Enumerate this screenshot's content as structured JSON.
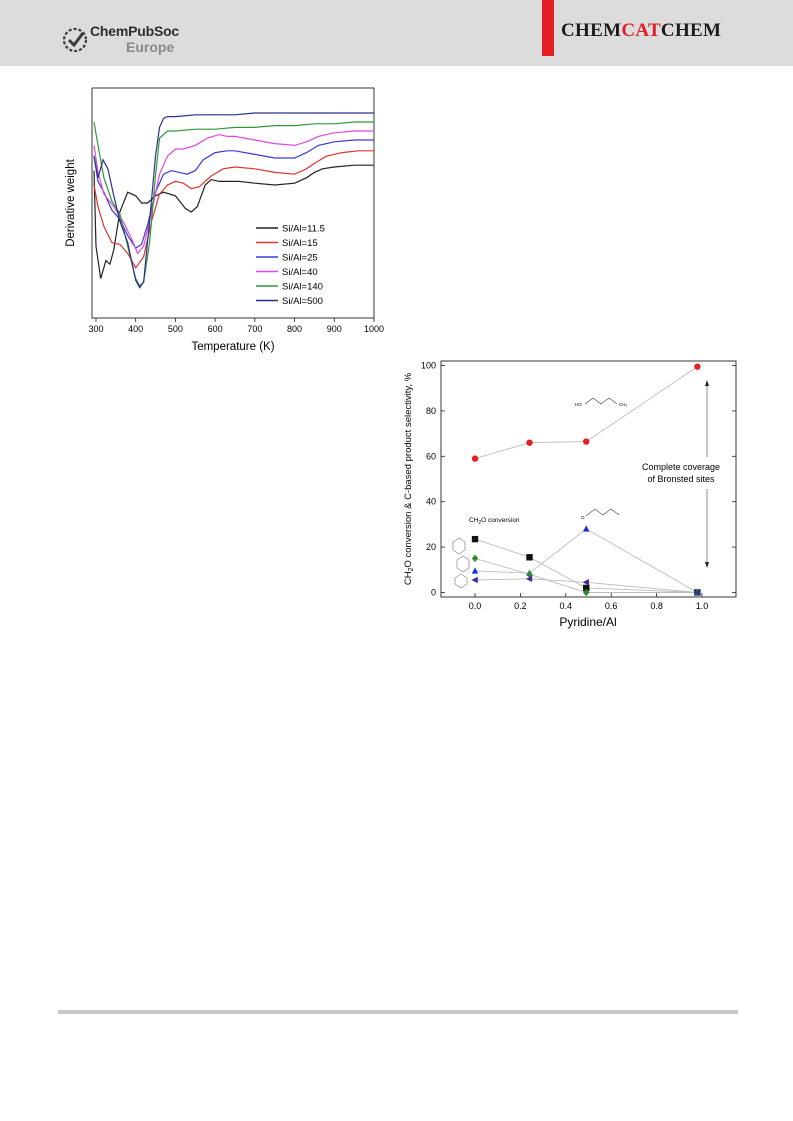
{
  "header": {
    "publisher_line1": "ChemPubSoc",
    "publisher_line2": "Europe",
    "journal_part1": "CHEM",
    "journal_part2": "CAT",
    "journal_part3": "CHEM",
    "accent_color": "#e31e24"
  },
  "chart_data": [
    {
      "type": "line",
      "xlabel": "Temperature (K)",
      "ylabel": "Derivative weight",
      "xlim": [
        290,
        1000
      ],
      "x_ticks": [
        "300",
        "400",
        "500",
        "600",
        "700",
        "800",
        "900",
        "1000"
      ],
      "y_ticks_shown": false,
      "grid": false,
      "legend_position": "lower-right",
      "series": [
        {
          "name": "Si/Al=11.5",
          "color": "#222222",
          "x": [
            295,
            300,
            312,
            325,
            335,
            345,
            360,
            380,
            400,
            415,
            430,
            450,
            470,
            500,
            525,
            540,
            555,
            575,
            590,
            610,
            630,
            660,
            700,
            750,
            800,
            830,
            850,
            870,
            900,
            950,
            1000
          ],
          "y": [
            0.32,
            0.74,
            0.92,
            0.82,
            0.84,
            0.76,
            0.55,
            0.44,
            0.46,
            0.5,
            0.5,
            0.46,
            0.44,
            0.46,
            0.53,
            0.55,
            0.52,
            0.4,
            0.37,
            0.38,
            0.38,
            0.38,
            0.39,
            0.4,
            0.39,
            0.36,
            0.33,
            0.31,
            0.3,
            0.29,
            0.29
          ]
        },
        {
          "name": "Si/Al=15",
          "color": "#e0342e",
          "x": [
            295,
            305,
            320,
            340,
            360,
            380,
            400,
            420,
            440,
            460,
            480,
            500,
            520,
            540,
            560,
            590,
            620,
            650,
            700,
            750,
            800,
            830,
            850,
            880,
            920,
            960,
            1000
          ],
          "y": [
            0.4,
            0.52,
            0.63,
            0.72,
            0.73,
            0.78,
            0.86,
            0.8,
            0.6,
            0.45,
            0.4,
            0.38,
            0.39,
            0.42,
            0.41,
            0.35,
            0.31,
            0.3,
            0.31,
            0.33,
            0.34,
            0.31,
            0.28,
            0.24,
            0.22,
            0.21,
            0.21
          ]
        },
        {
          "name": "Si/Al=25",
          "color": "#3a3ad8",
          "x": [
            295,
            305,
            320,
            340,
            360,
            380,
            400,
            415,
            430,
            450,
            470,
            490,
            510,
            530,
            550,
            570,
            600,
            630,
            650,
            700,
            750,
            800,
            830,
            860,
            900,
            950,
            1000
          ],
          "y": [
            0.24,
            0.38,
            0.44,
            0.54,
            0.59,
            0.68,
            0.75,
            0.73,
            0.62,
            0.44,
            0.34,
            0.32,
            0.33,
            0.34,
            0.32,
            0.26,
            0.22,
            0.21,
            0.21,
            0.23,
            0.25,
            0.25,
            0.22,
            0.18,
            0.16,
            0.15,
            0.15
          ]
        },
        {
          "name": "Si/Al=40",
          "color": "#e048e0",
          "x": [
            295,
            305,
            320,
            345,
            370,
            390,
            405,
            420,
            440,
            460,
            480,
            500,
            520,
            550,
            580,
            610,
            630,
            650,
            700,
            750,
            800,
            830,
            860,
            900,
            950,
            1000
          ],
          "y": [
            0.18,
            0.33,
            0.45,
            0.52,
            0.61,
            0.7,
            0.78,
            0.74,
            0.55,
            0.34,
            0.24,
            0.2,
            0.2,
            0.18,
            0.14,
            0.12,
            0.13,
            0.13,
            0.15,
            0.17,
            0.18,
            0.16,
            0.13,
            0.11,
            0.1,
            0.1
          ]
        },
        {
          "name": "Si/Al=140",
          "color": "#2e9a3a",
          "x": [
            295,
            305,
            320,
            340,
            360,
            380,
            400,
            410,
            420,
            435,
            450,
            460,
            480,
            500,
            550,
            600,
            650,
            700,
            750,
            800,
            850,
            900,
            950,
            1000
          ],
          "y": [
            0.05,
            0.18,
            0.36,
            0.49,
            0.56,
            0.74,
            0.92,
            0.96,
            0.94,
            0.72,
            0.35,
            0.14,
            0.1,
            0.1,
            0.09,
            0.09,
            0.08,
            0.08,
            0.07,
            0.07,
            0.06,
            0.06,
            0.05,
            0.05
          ]
        },
        {
          "name": "Si/Al=500",
          "color": "#2e2e8a",
          "x": [
            295,
            305,
            318,
            330,
            345,
            360,
            380,
            400,
            410,
            420,
            435,
            450,
            460,
            470,
            480,
            500,
            550,
            600,
            650,
            700,
            800,
            900,
            1000
          ],
          "y": [
            0.24,
            0.36,
            0.26,
            0.31,
            0.46,
            0.6,
            0.72,
            0.93,
            0.97,
            0.94,
            0.6,
            0.24,
            0.08,
            0.03,
            0.02,
            0.02,
            0.01,
            0.01,
            0.01,
            0.0,
            0.0,
            0.0,
            0.0
          ]
        }
      ]
    },
    {
      "type": "scatter",
      "xlabel": "Pyridine/Al",
      "ylabel_main": "CH",
      "ylabel_sub": "2",
      "ylabel_rest": "O conversion & C-based product selectivity, %",
      "xlim": [
        -0.15,
        1.15
      ],
      "ylim": [
        -2,
        102
      ],
      "x_ticks": [
        "0.0",
        "0.2",
        "0.4",
        "0.6",
        "0.8",
        "1.0"
      ],
      "y_ticks": [
        "0",
        "20",
        "40",
        "60",
        "80",
        "100"
      ],
      "annotation_main": "CH",
      "annotation_sub": "2",
      "annotation_rest": "O conversion",
      "coverage_line1": "Complete coverage",
      "coverage_line2": "of Bronsted sites",
      "series": [
        {
          "marker": "circle",
          "color": "#e62020",
          "x": [
            0.0,
            0.24,
            0.49,
            0.98
          ],
          "y": [
            59,
            66,
            66.5,
            99.5
          ]
        },
        {
          "marker": "square",
          "color": "#111111",
          "x": [
            0.0,
            0.24,
            0.49,
            0.98
          ],
          "y": [
            23.5,
            15.5,
            2,
            0
          ]
        },
        {
          "marker": "triangle-up",
          "color": "#1e2ee0",
          "x": [
            0.0,
            0.24,
            0.49,
            0.98
          ],
          "y": [
            9.5,
            8.5,
            28,
            0
          ]
        },
        {
          "marker": "diamond",
          "color": "#2e8a2a",
          "x": [
            0.0,
            0.24,
            0.49,
            0.98
          ],
          "y": [
            15,
            8,
            0,
            0
          ]
        },
        {
          "marker": "triangle-left",
          "color": "#3a2a9a",
          "x": [
            0.0,
            0.24,
            0.49,
            0.98
          ],
          "y": [
            5.5,
            6,
            4.5,
            0
          ]
        }
      ]
    }
  ]
}
